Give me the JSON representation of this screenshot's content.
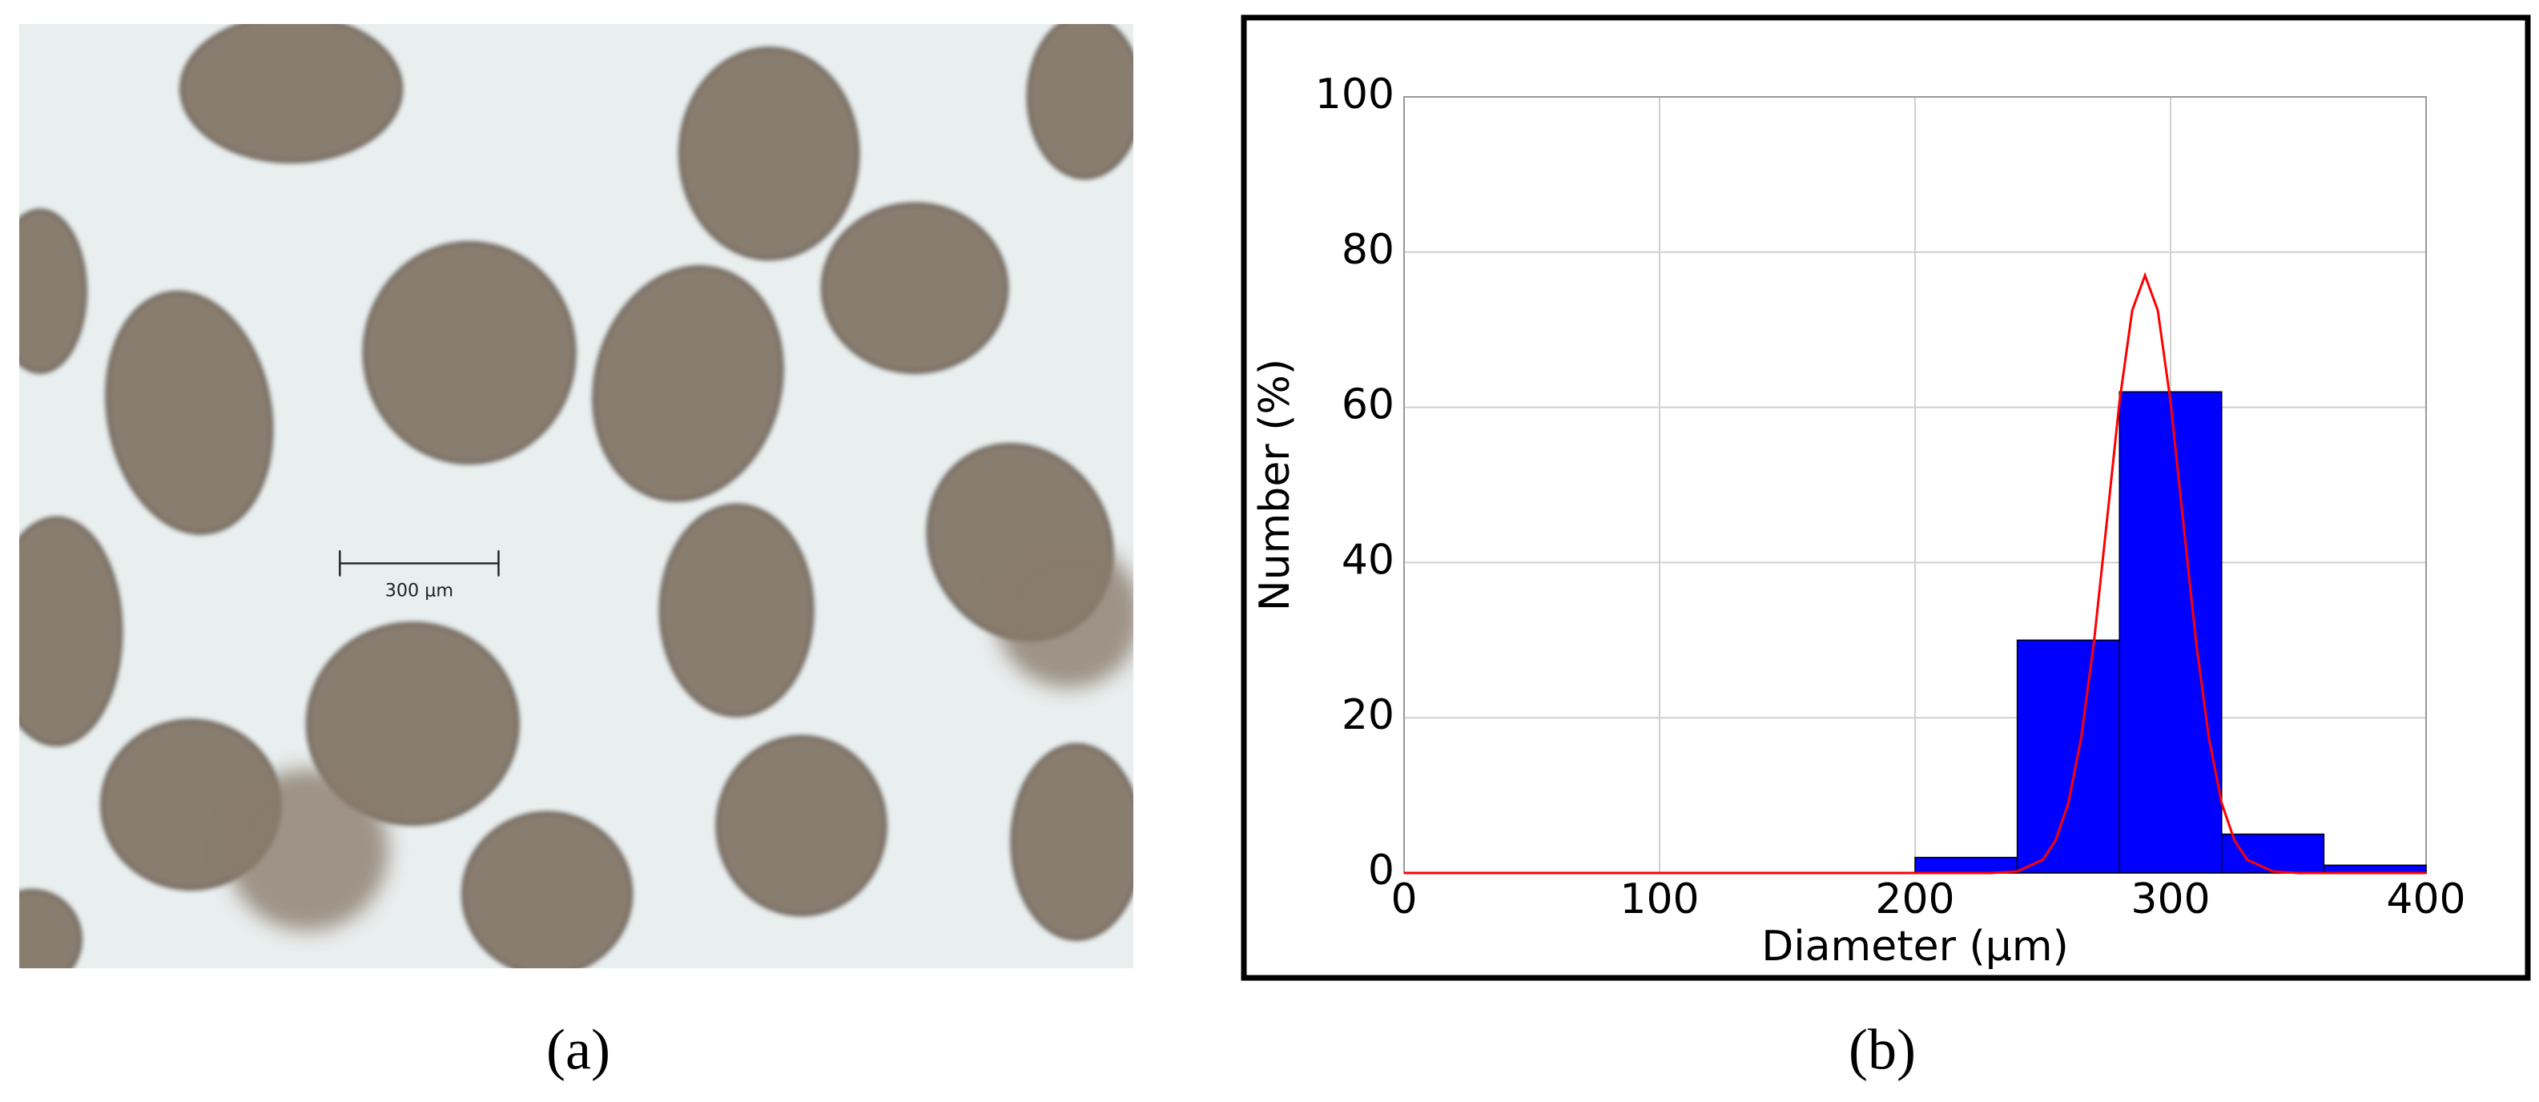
{
  "figure": {
    "panel_a_label": "(a)",
    "scale_bar_text": "300 μm",
    "panel_b_label": "(b)"
  },
  "chart_data": {
    "type": "histogram",
    "x_label": "Diameter (μm)",
    "y_label": "Number (%)",
    "bins": [
      200,
      240,
      280,
      320,
      360,
      400
    ],
    "values": [
      2,
      30,
      62,
      5,
      1
    ],
    "color": "#0000ff",
    "fit": {
      "color": "#ff0000",
      "x": [
        0,
        200,
        230,
        240,
        250,
        255,
        260,
        265,
        270,
        275,
        280,
        285,
        290,
        295,
        300,
        305,
        310,
        315,
        320,
        325,
        330,
        340,
        350,
        400
      ],
      "values": [
        0,
        0,
        0,
        0.2,
        1.7,
        4.2,
        9.0,
        17.4,
        29.7,
        45.1,
        60.7,
        72.5,
        77,
        72.5,
        60.7,
        45.1,
        29.7,
        17.4,
        9.0,
        4.2,
        1.7,
        0.2,
        0,
        0
      ]
    },
    "xlim": [
      0,
      400
    ],
    "ylim": [
      0,
      100
    ],
    "xticks": [
      0,
      100,
      200,
      300,
      400
    ],
    "yticks": [
      0,
      20,
      40,
      60,
      80,
      100
    ],
    "grid": true
  }
}
